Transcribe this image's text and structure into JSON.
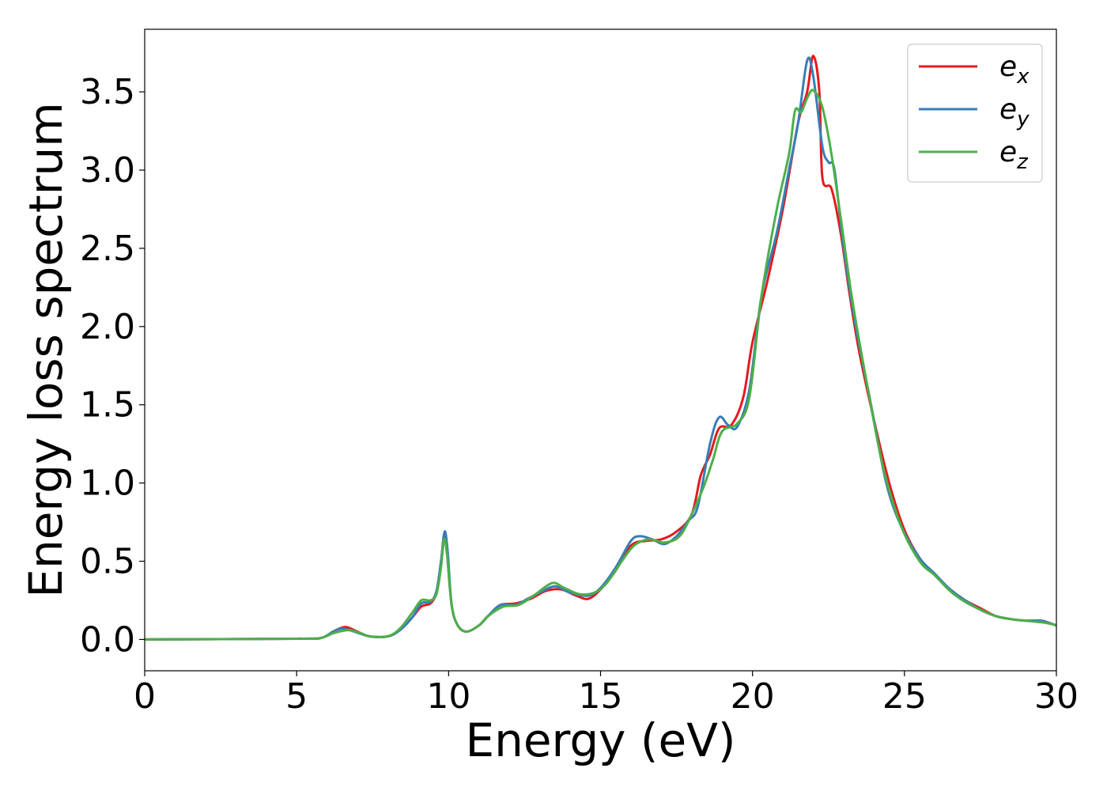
{
  "chart_data": {
    "type": "line",
    "title": "",
    "xlabel": "Energy (eV)",
    "ylabel": "Energy loss spectrum",
    "xlim": [
      0,
      30
    ],
    "ylim": [
      -0.2,
      3.9
    ],
    "xticks": [
      0,
      5,
      10,
      15,
      20,
      25,
      30
    ],
    "xtick_labels": [
      "0",
      "5",
      "10",
      "15",
      "20",
      "25",
      "30"
    ],
    "yticks": [
      0.0,
      0.5,
      1.0,
      1.5,
      2.0,
      2.5,
      3.0,
      3.5
    ],
    "ytick_labels": [
      "0.0",
      "0.5",
      "1.0",
      "1.5",
      "2.0",
      "2.5",
      "3.0",
      "3.5"
    ],
    "grid": false,
    "legend_position": "top-right",
    "series": [
      {
        "name": "e_x",
        "legend_base": "e",
        "legend_sub": "x",
        "color": "#e41a1c",
        "points": [
          [
            0,
            0
          ],
          [
            5,
            0.005
          ],
          [
            5.8,
            0.01
          ],
          [
            6.2,
            0.05
          ],
          [
            6.6,
            0.08
          ],
          [
            7.0,
            0.05
          ],
          [
            7.4,
            0.02
          ],
          [
            8.0,
            0.02
          ],
          [
            8.4,
            0.06
          ],
          [
            8.8,
            0.14
          ],
          [
            9.1,
            0.21
          ],
          [
            9.4,
            0.23
          ],
          [
            9.6,
            0.3
          ],
          [
            9.75,
            0.48
          ],
          [
            9.85,
            0.67
          ],
          [
            9.95,
            0.55
          ],
          [
            10.1,
            0.22
          ],
          [
            10.3,
            0.09
          ],
          [
            10.6,
            0.05
          ],
          [
            11.0,
            0.09
          ],
          [
            11.3,
            0.15
          ],
          [
            11.7,
            0.22
          ],
          [
            12.2,
            0.23
          ],
          [
            12.7,
            0.26
          ],
          [
            13.2,
            0.31
          ],
          [
            13.7,
            0.32
          ],
          [
            14.2,
            0.28
          ],
          [
            14.6,
            0.26
          ],
          [
            15.0,
            0.32
          ],
          [
            15.5,
            0.44
          ],
          [
            16.0,
            0.6
          ],
          [
            16.5,
            0.63
          ],
          [
            17.0,
            0.64
          ],
          [
            17.5,
            0.69
          ],
          [
            18.0,
            0.8
          ],
          [
            18.3,
            1.05
          ],
          [
            18.6,
            1.18
          ],
          [
            18.9,
            1.35
          ],
          [
            19.3,
            1.37
          ],
          [
            19.7,
            1.55
          ],
          [
            20.0,
            1.9
          ],
          [
            20.5,
            2.3
          ],
          [
            21.0,
            2.75
          ],
          [
            21.5,
            3.3
          ],
          [
            21.8,
            3.5
          ],
          [
            22.0,
            3.73
          ],
          [
            22.2,
            3.5
          ],
          [
            22.3,
            2.95
          ],
          [
            22.6,
            2.88
          ],
          [
            22.9,
            2.6
          ],
          [
            23.2,
            2.2
          ],
          [
            23.5,
            1.85
          ],
          [
            24.0,
            1.4
          ],
          [
            24.5,
            1.0
          ],
          [
            25.0,
            0.7
          ],
          [
            25.5,
            0.52
          ],
          [
            26.0,
            0.41
          ],
          [
            26.5,
            0.32
          ],
          [
            27.0,
            0.25
          ],
          [
            27.5,
            0.2
          ],
          [
            28.0,
            0.15
          ],
          [
            28.5,
            0.13
          ],
          [
            29.0,
            0.12
          ],
          [
            29.5,
            0.12
          ],
          [
            29.7,
            0.11
          ],
          [
            30.0,
            0.09
          ]
        ]
      },
      {
        "name": "e_y",
        "legend_base": "e",
        "legend_sub": "y",
        "color": "#377eb8",
        "points": [
          [
            0,
            0
          ],
          [
            5,
            0.005
          ],
          [
            5.8,
            0.01
          ],
          [
            6.2,
            0.05
          ],
          [
            6.5,
            0.07
          ],
          [
            6.9,
            0.05
          ],
          [
            7.4,
            0.02
          ],
          [
            8.0,
            0.02
          ],
          [
            8.4,
            0.06
          ],
          [
            8.8,
            0.14
          ],
          [
            9.1,
            0.23
          ],
          [
            9.4,
            0.24
          ],
          [
            9.6,
            0.31
          ],
          [
            9.75,
            0.5
          ],
          [
            9.87,
            0.69
          ],
          [
            9.97,
            0.56
          ],
          [
            10.1,
            0.22
          ],
          [
            10.3,
            0.09
          ],
          [
            10.6,
            0.05
          ],
          [
            11.0,
            0.09
          ],
          [
            11.3,
            0.15
          ],
          [
            11.7,
            0.22
          ],
          [
            12.2,
            0.22
          ],
          [
            12.6,
            0.26
          ],
          [
            13.0,
            0.3
          ],
          [
            13.5,
            0.34
          ],
          [
            14.0,
            0.3
          ],
          [
            14.6,
            0.28
          ],
          [
            15.0,
            0.33
          ],
          [
            15.5,
            0.46
          ],
          [
            16.0,
            0.63
          ],
          [
            16.3,
            0.66
          ],
          [
            16.7,
            0.64
          ],
          [
            17.1,
            0.61
          ],
          [
            17.5,
            0.66
          ],
          [
            17.9,
            0.76
          ],
          [
            18.2,
            0.85
          ],
          [
            18.6,
            1.25
          ],
          [
            18.9,
            1.42
          ],
          [
            19.2,
            1.37
          ],
          [
            19.5,
            1.36
          ],
          [
            19.9,
            1.6
          ],
          [
            20.3,
            2.2
          ],
          [
            20.8,
            2.6
          ],
          [
            21.2,
            3.0
          ],
          [
            21.5,
            3.3
          ],
          [
            21.8,
            3.7
          ],
          [
            22.0,
            3.6
          ],
          [
            22.3,
            3.15
          ],
          [
            22.5,
            3.05
          ],
          [
            22.7,
            3.0
          ],
          [
            23.0,
            2.5
          ],
          [
            23.4,
            2.0
          ],
          [
            23.9,
            1.5
          ],
          [
            24.4,
            1.0
          ],
          [
            24.9,
            0.72
          ],
          [
            25.5,
            0.52
          ],
          [
            26.0,
            0.42
          ],
          [
            26.5,
            0.32
          ],
          [
            27.0,
            0.25
          ],
          [
            27.5,
            0.19
          ],
          [
            28.0,
            0.15
          ],
          [
            28.5,
            0.13
          ],
          [
            29.0,
            0.12
          ],
          [
            29.5,
            0.12
          ],
          [
            30.0,
            0.09
          ]
        ]
      },
      {
        "name": "e_z",
        "legend_base": "e",
        "legend_sub": "z",
        "color": "#4daf4a",
        "points": [
          [
            0,
            0
          ],
          [
            5,
            0.005
          ],
          [
            5.8,
            0.01
          ],
          [
            6.2,
            0.04
          ],
          [
            6.7,
            0.06
          ],
          [
            7.1,
            0.04
          ],
          [
            7.4,
            0.02
          ],
          [
            8.0,
            0.02
          ],
          [
            8.4,
            0.07
          ],
          [
            8.8,
            0.17
          ],
          [
            9.1,
            0.25
          ],
          [
            9.4,
            0.25
          ],
          [
            9.6,
            0.29
          ],
          [
            9.75,
            0.46
          ],
          [
            9.85,
            0.64
          ],
          [
            9.95,
            0.54
          ],
          [
            10.1,
            0.22
          ],
          [
            10.3,
            0.09
          ],
          [
            10.6,
            0.05
          ],
          [
            11.0,
            0.09
          ],
          [
            11.3,
            0.15
          ],
          [
            11.8,
            0.21
          ],
          [
            12.3,
            0.22
          ],
          [
            12.8,
            0.28
          ],
          [
            13.4,
            0.36
          ],
          [
            13.8,
            0.33
          ],
          [
            14.3,
            0.29
          ],
          [
            14.8,
            0.3
          ],
          [
            15.2,
            0.36
          ],
          [
            15.7,
            0.5
          ],
          [
            16.1,
            0.6
          ],
          [
            16.6,
            0.64
          ],
          [
            17.1,
            0.62
          ],
          [
            17.6,
            0.66
          ],
          [
            18.0,
            0.8
          ],
          [
            18.4,
            0.98
          ],
          [
            18.7,
            1.15
          ],
          [
            19.0,
            1.33
          ],
          [
            19.5,
            1.38
          ],
          [
            19.9,
            1.55
          ],
          [
            20.3,
            2.2
          ],
          [
            20.8,
            2.75
          ],
          [
            21.2,
            3.1
          ],
          [
            21.4,
            3.38
          ],
          [
            21.6,
            3.37
          ],
          [
            21.8,
            3.46
          ],
          [
            22.0,
            3.51
          ],
          [
            22.3,
            3.4
          ],
          [
            22.6,
            3.1
          ],
          [
            22.9,
            2.7
          ],
          [
            23.3,
            2.15
          ],
          [
            23.8,
            1.6
          ],
          [
            24.3,
            1.1
          ],
          [
            24.9,
            0.72
          ],
          [
            25.5,
            0.5
          ],
          [
            26.0,
            0.41
          ],
          [
            26.5,
            0.31
          ],
          [
            27.0,
            0.24
          ],
          [
            27.5,
            0.19
          ],
          [
            28.0,
            0.15
          ],
          [
            28.5,
            0.13
          ],
          [
            29.0,
            0.12
          ],
          [
            29.5,
            0.11
          ],
          [
            29.8,
            0.1
          ],
          [
            30.0,
            0.09
          ]
        ]
      }
    ]
  }
}
